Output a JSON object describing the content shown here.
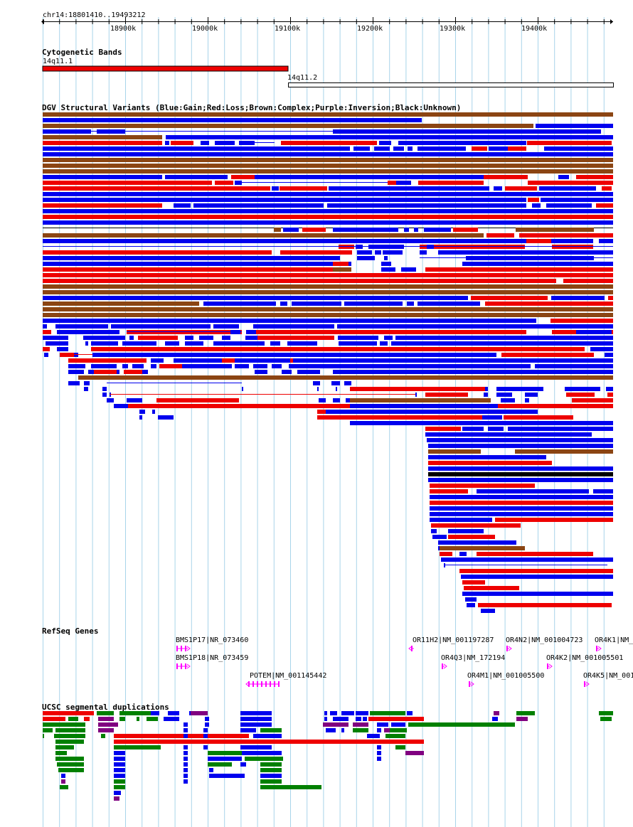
{
  "ruler": {
    "region": "chr14:18801410..19493212",
    "ticks": [
      "18900k",
      "19000k",
      "19100k",
      "19200k",
      "19300k",
      "19400k"
    ]
  },
  "colors": {
    "gridline": "#a8d4ea",
    "gain": "#0000ee",
    "loss": "#ee0000",
    "complex": "#8b4513",
    "inversion": "#800080",
    "unknown": "#000000",
    "gene": "#ff00ff",
    "segdup_green": "#008000"
  },
  "cytoband": {
    "title": "Cytogenetic Bands",
    "bands": [
      {
        "name": "14q11.1",
        "style": "centromere"
      },
      {
        "name": "14q11.2",
        "style": "open"
      }
    ]
  },
  "dgv": {
    "title": "DGV Structural Variants (Blue:Gain;Red:Loss;Brown:Complex;Purple:Inversion;Black:Unknown)"
  },
  "refseq": {
    "title": "RefSeq Genes",
    "genes": [
      {
        "label": "BMS1P17|NR_073460",
        "strand": "+"
      },
      {
        "label": "BMS1P18|NR_073459",
        "strand": "+"
      },
      {
        "label": "POTEM|NM_001145442",
        "strand": "-"
      },
      {
        "label": "OR11H2|NM_001197287",
        "strand": "-"
      },
      {
        "label": "OR4Q3|NM_172194",
        "strand": "+"
      },
      {
        "label": "OR4M1|NM_001005500",
        "strand": "+"
      },
      {
        "label": "OR4N2|NM_001004723",
        "strand": "+"
      },
      {
        "label": "OR4K2|NM_001005501",
        "strand": "+"
      },
      {
        "label": "OR4K1|NM_",
        "strand": "+"
      },
      {
        "label": "OR4K5|NM_001",
        "strand": "+"
      }
    ]
  },
  "segdup": {
    "title": "UCSC segmental duplications"
  }
}
